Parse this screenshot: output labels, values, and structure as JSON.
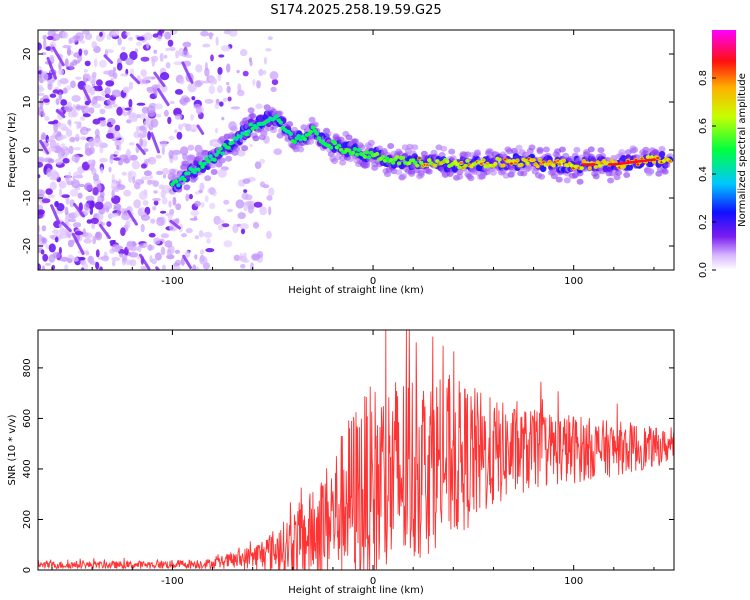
{
  "title": "S174.2025.258.19.59.G25",
  "chart_data": [
    {
      "type": "heatmap",
      "name": "spectrogram",
      "xlabel": "Height of straight line (km)",
      "ylabel": "Frequency (Hz)",
      "xlim": [
        -167,
        150
      ],
      "ylim": [
        -25,
        25
      ],
      "x_ticks": [
        -100,
        0,
        100
      ],
      "y_ticks": [
        -20,
        -10,
        0,
        10,
        20
      ],
      "ridge": {
        "x": [
          -97,
          -92,
          -85,
          -78,
          -72,
          -66,
          -60,
          -55,
          -50,
          -46,
          -42,
          -38,
          -34,
          -30,
          -25,
          -20,
          -15,
          -10,
          -5,
          0,
          10,
          20,
          30,
          40,
          50,
          60,
          70,
          80,
          90,
          100,
          110,
          120,
          130,
          140,
          148
        ],
        "y": [
          -7,
          -5,
          -3,
          -1,
          1,
          3,
          5,
          6,
          7,
          6,
          3,
          2,
          3,
          4,
          2,
          1,
          0,
          0,
          -1,
          -1,
          -2,
          -2.5,
          -2.5,
          -3,
          -3,
          -2.5,
          -2.5,
          -2.5,
          -3,
          -3,
          -3,
          -3,
          -2.5,
          -2,
          -2
        ]
      },
      "colorbar": {
        "label": "Normalized spectral amplitude",
        "range": [
          0,
          1
        ],
        "ticks": [
          "0.0",
          "0.2",
          "0.4",
          "0.6",
          "0.8"
        ],
        "tick_values": [
          0,
          0.2,
          0.4,
          0.6,
          0.8
        ]
      }
    },
    {
      "type": "line",
      "name": "snr",
      "xlabel": "Height of straight line (km)",
      "ylabel": "SNR (10 * v/v)",
      "xlim": [
        -167,
        150
      ],
      "ylim": [
        0,
        950
      ],
      "x_ticks": [
        -100,
        0,
        100
      ],
      "y_ticks": [
        0,
        200,
        400,
        600,
        800
      ],
      "color": "#ff3333",
      "envelope": {
        "x": [
          -167,
          -120,
          -80,
          -60,
          -45,
          -38,
          -30,
          -20,
          -10,
          0,
          10,
          20,
          30,
          40,
          50,
          60,
          70,
          80,
          90,
          100,
          110,
          120,
          130,
          140,
          150
        ],
        "base": [
          20,
          20,
          25,
          50,
          90,
          110,
          140,
          220,
          300,
          320,
          360,
          400,
          430,
          440,
          450,
          460,
          470,
          475,
          480,
          480,
          480,
          480,
          485,
          485,
          490
        ],
        "amp": [
          15,
          15,
          20,
          50,
          100,
          150,
          180,
          250,
          350,
          420,
          420,
          400,
          350,
          320,
          280,
          220,
          180,
          160,
          150,
          140,
          120,
          110,
          100,
          80,
          60
        ]
      }
    }
  ],
  "colors": {
    "axis": "#000000",
    "line": "#ff3333",
    "background": "#ffffff"
  }
}
